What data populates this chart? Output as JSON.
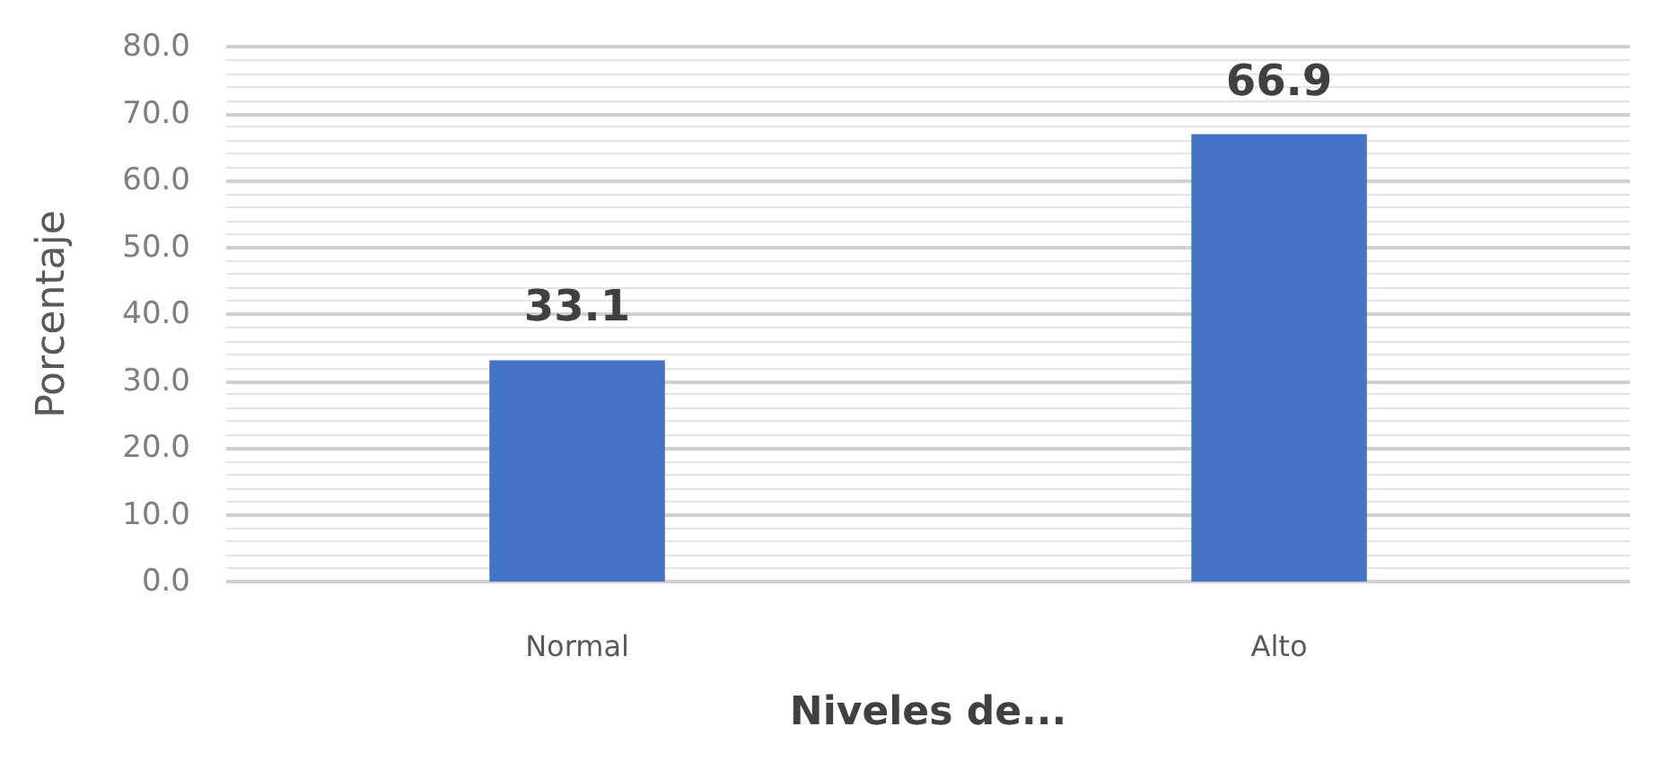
{
  "chart_data": {
    "type": "bar",
    "categories": [
      "Normal",
      "Alto"
    ],
    "values": [
      33.1,
      66.9
    ],
    "color": "#4472c4",
    "xlabel": "Niveles de...",
    "ylabel": "Porcentaje",
    "ylim": [
      0,
      80
    ],
    "yticks": [
      {
        "value": 0,
        "label": "0.0"
      },
      {
        "value": 10,
        "label": "10.0"
      },
      {
        "value": 20,
        "label": "20.0"
      },
      {
        "value": 30,
        "label": "30.0"
      },
      {
        "value": 40,
        "label": "40.0"
      },
      {
        "value": 50,
        "label": "50.0"
      },
      {
        "value": 60,
        "label": "60.0"
      },
      {
        "value": 70,
        "label": "70.0"
      },
      {
        "value": 80,
        "label": "80.0"
      }
    ],
    "grid": "y",
    "data_labels": true
  }
}
